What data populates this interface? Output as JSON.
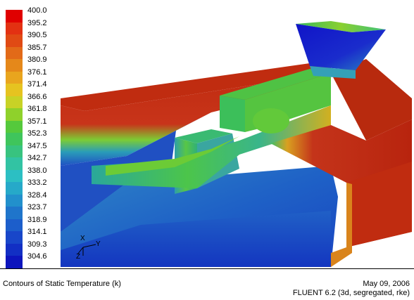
{
  "colorbar": {
    "labels": [
      "400.0",
      "395.2",
      "390.5",
      "385.7",
      "380.9",
      "376.1",
      "371.4",
      "366.6",
      "361.8",
      "357.1",
      "352.3",
      "347.5",
      "342.7",
      "338.0",
      "333.2",
      "328.4",
      "323.7",
      "318.9",
      "314.1",
      "309.3",
      "304.6"
    ],
    "colors": [
      "#e00000",
      "#e33112",
      "#e04a14",
      "#e26a18",
      "#e5881a",
      "#e9a51e",
      "#e6c320",
      "#c8d226",
      "#8fd12b",
      "#55c93c",
      "#3fc55c",
      "#38c37f",
      "#32c3a3",
      "#2cbfc3",
      "#26a9c9",
      "#2290cc",
      "#1f75cb",
      "#1c5ecb",
      "#1846c9",
      "#122fc4",
      "#0d15bd"
    ]
  },
  "axes": {
    "x": "X",
    "y": "Y",
    "z": "Z"
  },
  "footer": {
    "caption": "Contours of Static Temperature (k)",
    "date": "May 09, 2006",
    "solver": "FLUENT 6.2 (3d, segregated, rke)"
  },
  "palette": {
    "hot": "#c42a10",
    "warm": "#e06a18",
    "mid": "#5bc63a",
    "cool": "#2aa0b8",
    "cold": "#1c55c0",
    "inlet": "#1515c8"
  }
}
